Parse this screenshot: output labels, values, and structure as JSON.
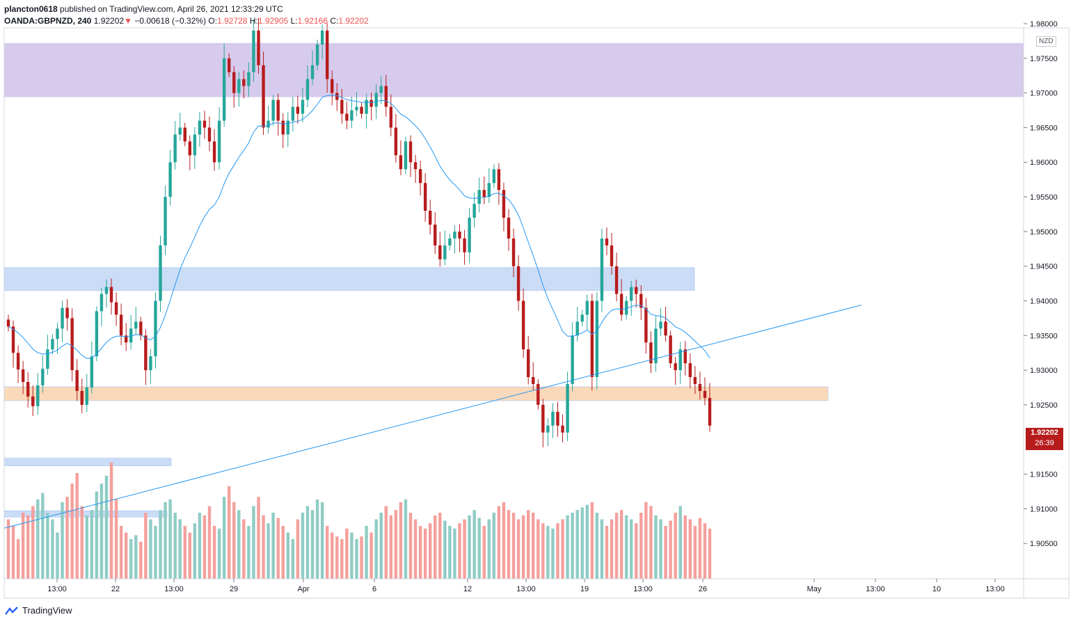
{
  "header": {
    "user": "plancton0618",
    "published_text": "published on TradingView.com, April 26, 2021 12:33:29 UTC",
    "symbol": "OANDA:GBPNZD, 240",
    "last": "1.92202",
    "change": "▼",
    "change_value": "−0.00618 (−0.32%)",
    "o_label": "O:",
    "o_value": "1.92728",
    "h_label": "H:",
    "h_value": "1.92905",
    "l_label": "L:",
    "l_value": "1.92166",
    "c_label": "C:",
    "c_value": "1.92202"
  },
  "price_axis": {
    "currency": "NZD",
    "ticks": [
      "1.98000",
      "1.97500",
      "1.97000",
      "1.96500",
      "1.96000",
      "1.95500",
      "1.95000",
      "1.94500",
      "1.94000",
      "1.93500",
      "1.93000",
      "1.92500",
      "1.91500",
      "1.91000",
      "1.90500"
    ]
  },
  "time_axis": {
    "ticks": [
      "13:00",
      "22",
      "13:00",
      "29",
      "Apr",
      "6",
      "12",
      "13:00",
      "19",
      "13:00",
      "26",
      "May",
      "13:00",
      "10",
      "13:00"
    ]
  },
  "price_tag": {
    "price": "1.92202",
    "countdown": "26:39"
  },
  "footer": {
    "brand": "TradingView"
  },
  "colors": {
    "up": "#26a69a",
    "down": "#b71c1c",
    "vol_up": "#8fccc5",
    "vol_down": "#f4a09c",
    "ema": "#2196f3",
    "trend": "#2196f3",
    "zone_purple": "#d4c8ec",
    "zone_blue": "#c9dbf7",
    "zone_orange": "#fad8b8"
  },
  "chart_data": {
    "type": "candlestick",
    "symbol": "OANDA:GBPNZD",
    "interval": "240",
    "ylim": [
      1.9005,
      1.98
    ],
    "zones": [
      {
        "name": "purple",
        "from": 1.9694,
        "to": 1.9772
      },
      {
        "name": "blue",
        "from": 1.9415,
        "to": 1.9448
      },
      {
        "name": "orange",
        "from": 1.9256,
        "to": 1.9276
      },
      {
        "name": "blue-low",
        "from": 1.9162,
        "to": 1.9173
      },
      {
        "name": "blue-volume",
        "from": 1.9088,
        "to": 1.9097
      }
    ],
    "trendline": {
      "from": 1.9072,
      "to": 1.9394
    },
    "closes": [
      1.9363,
      1.9325,
      1.9301,
      1.9283,
      1.9262,
      1.9248,
      1.9278,
      1.9302,
      1.933,
      1.9345,
      1.936,
      1.939,
      1.9375,
      1.93,
      1.927,
      1.925,
      1.9275,
      1.932,
      1.9385,
      1.941,
      1.942,
      1.9398,
      1.938,
      1.935,
      1.934,
      1.936,
      1.937,
      1.935,
      1.93,
      1.932,
      1.94,
      1.948,
      1.955,
      1.96,
      1.964,
      1.965,
      1.963,
      1.961,
      1.964,
      1.966,
      1.965,
      1.963,
      1.96,
      1.966,
      1.975,
      1.973,
      1.97,
      1.972,
      1.971,
      1.973,
      1.979,
      1.974,
      1.965,
      1.966,
      1.969,
      1.966,
      1.964,
      1.966,
      1.968,
      1.967,
      1.969,
      1.972,
      1.974,
      1.977,
      1.979,
      1.972,
      1.97,
      1.969,
      1.967,
      1.966,
      1.9675,
      1.968,
      1.967,
      1.969,
      1.968,
      1.97,
      1.971,
      1.968,
      1.965,
      1.961,
      1.959,
      1.963,
      1.96,
      1.959,
      1.957,
      1.953,
      1.951,
      1.948,
      1.946,
      1.948,
      1.949,
      1.95,
      1.949,
      1.947,
      1.952,
      1.954,
      1.956,
      1.955,
      1.957,
      1.959,
      1.956,
      1.952,
      1.949,
      1.945,
      1.94,
      1.933,
      1.929,
      1.928,
      1.925,
      1.921,
      1.922,
      1.924,
      1.922,
      1.921,
      1.928,
      1.935,
      1.937,
      1.938,
      1.94,
      1.929,
      1.94,
      1.949,
      1.948,
      1.945,
      1.941,
      1.938,
      1.94,
      1.942,
      1.941,
      1.939,
      1.934,
      1.931,
      1.936,
      1.937,
      1.935,
      1.931,
      1.93,
      1.933,
      1.931,
      1.929,
      1.928,
      1.927,
      1.926,
      1.922
    ],
    "volumes": [
      0.45,
      0.4,
      0.3,
      0.5,
      0.48,
      0.55,
      0.6,
      0.65,
      0.5,
      0.45,
      0.35,
      0.58,
      0.62,
      0.72,
      0.8,
      0.55,
      0.48,
      0.52,
      0.66,
      0.72,
      0.78,
      0.88,
      0.6,
      0.4,
      0.35,
      0.3,
      0.33,
      0.28,
      0.5,
      0.45,
      0.4,
      0.52,
      0.58,
      0.6,
      0.5,
      0.45,
      0.4,
      0.35,
      0.42,
      0.5,
      0.48,
      0.55,
      0.4,
      0.38,
      0.62,
      0.7,
      0.58,
      0.52,
      0.45,
      0.4,
      0.55,
      0.62,
      0.48,
      0.42,
      0.5,
      0.46,
      0.4,
      0.35,
      0.3,
      0.45,
      0.5,
      0.55,
      0.52,
      0.6,
      0.58,
      0.4,
      0.35,
      0.32,
      0.3,
      0.38,
      0.35,
      0.3,
      0.32,
      0.4,
      0.35,
      0.45,
      0.5,
      0.55,
      0.48,
      0.52,
      0.58,
      0.6,
      0.5,
      0.45,
      0.4,
      0.38,
      0.42,
      0.48,
      0.5,
      0.44,
      0.4,
      0.38,
      0.42,
      0.45,
      0.48,
      0.52,
      0.46,
      0.4,
      0.45,
      0.5,
      0.55,
      0.58,
      0.52,
      0.5,
      0.45,
      0.48,
      0.52,
      0.5,
      0.45,
      0.42,
      0.4,
      0.38,
      0.42,
      0.45,
      0.48,
      0.5,
      0.52,
      0.54,
      0.56,
      0.58,
      0.5,
      0.45,
      0.4,
      0.45,
      0.5,
      0.52,
      0.48,
      0.45,
      0.42,
      0.5,
      0.58,
      0.55,
      0.48,
      0.45,
      0.4,
      0.44,
      0.5,
      0.55,
      0.48,
      0.45,
      0.4,
      0.46,
      0.42,
      0.38
    ]
  }
}
